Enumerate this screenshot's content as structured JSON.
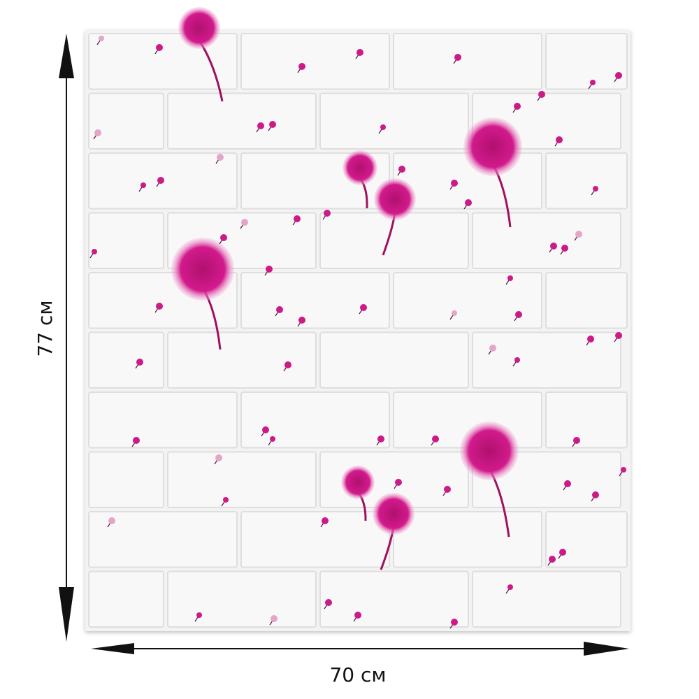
{
  "dimensions": {
    "height": "77 см",
    "width": "70 см"
  }
}
